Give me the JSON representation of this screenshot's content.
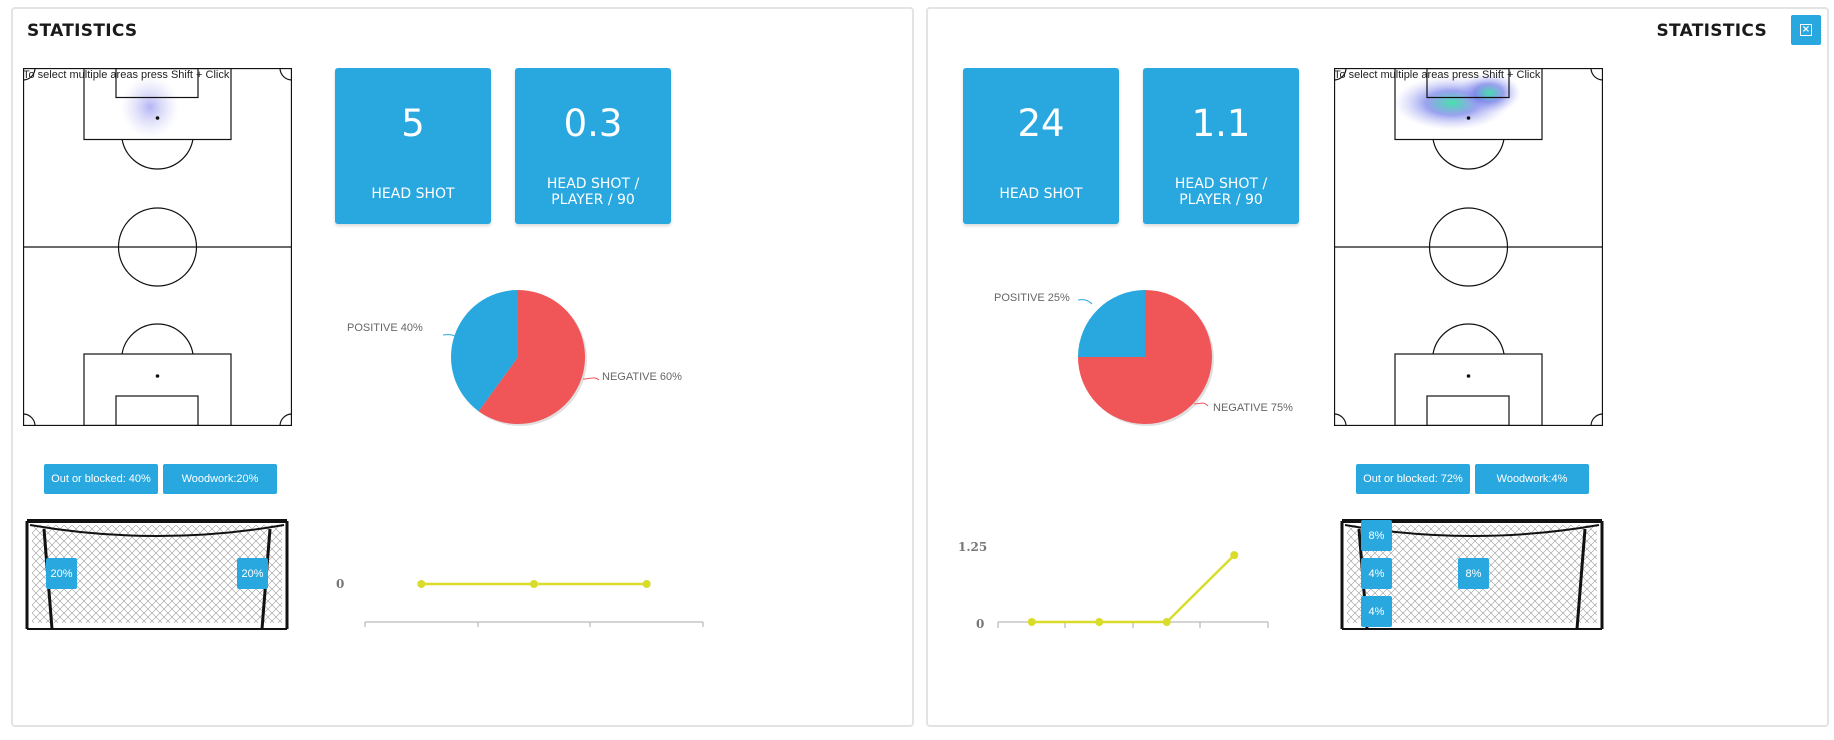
{
  "left": {
    "title": "STATISTICS",
    "pitch_hint": "To select multiple areas press Shift + Click",
    "stats": [
      {
        "value": "5",
        "label": "HEAD SHOT"
      },
      {
        "value": "0.3",
        "label": "HEAD SHOT / PLAYER / 90"
      }
    ],
    "pie": {
      "positive_label": "POSITIVE 40%",
      "negative_label": "NEGATIVE 60%",
      "positive_pct": 40,
      "negative_pct": 60
    },
    "pills": [
      "Out or blocked: 40%",
      "Woodwork:20%"
    ],
    "goal_badges": [
      "20%",
      "20%"
    ],
    "line": {
      "y_tick": "0",
      "points": [
        0,
        0,
        0
      ]
    }
  },
  "right": {
    "title": "STATISTICS",
    "close_icon": "close-icon",
    "pitch_hint": "To select multiple areas press Shift + Click",
    "stats": [
      {
        "value": "24",
        "label": "HEAD SHOT"
      },
      {
        "value": "1.1",
        "label": "HEAD SHOT / PLAYER / 90"
      }
    ],
    "pie": {
      "positive_label": "POSITIVE 25%",
      "negative_label": "NEGATIVE 75%",
      "positive_pct": 25,
      "negative_pct": 75
    },
    "pills": [
      "Out or blocked: 72%",
      "Woodwork:4%"
    ],
    "goal_badges": [
      "8%",
      "4%",
      "4%",
      "8%"
    ],
    "line": {
      "y_ticks": [
        "1.25",
        "0"
      ],
      "points": [
        0,
        0,
        0,
        1.1
      ]
    }
  },
  "colors": {
    "accent": "#29a8e0",
    "positive": "#29a8e0",
    "negative": "#f05558",
    "line": "#d9dc2b"
  }
}
